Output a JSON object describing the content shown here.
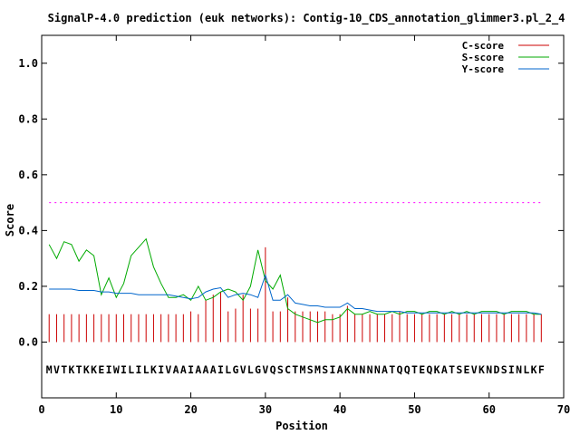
{
  "chart_data": {
    "type": "line",
    "title": "SignalP-4.0 prediction (euk networks): Contig-10_CDS_annotation_glimmer3.pl_2_4",
    "xlabel": "Position",
    "ylabel": "Score",
    "xlim": [
      0,
      70
    ],
    "ylim": [
      -0.2,
      1.1
    ],
    "x_ticks": [
      "0",
      "10",
      "20",
      "30",
      "40",
      "50",
      "60",
      "70"
    ],
    "y_ticks": [
      "0.0",
      "0.2",
      "0.4",
      "0.6",
      "0.8",
      "1.0"
    ],
    "x_tick_values": [
      0,
      10,
      20,
      30,
      40,
      50,
      60,
      70
    ],
    "y_tick_values": [
      0.0,
      0.2,
      0.4,
      0.6,
      0.8,
      1.0
    ],
    "threshold": 0.5,
    "legend_position": "top-right",
    "sequence": "MVTKTKKEIWILILKIVAAIAAAILGVLGVQSCTMSMSIAKNNNNATQQTEQKATSEVKNDSINLKF",
    "series": [
      {
        "name": "C-score",
        "style": "impulse",
        "color": "#cc0000",
        "x": [
          1,
          2,
          3,
          4,
          5,
          6,
          7,
          8,
          9,
          10,
          11,
          12,
          13,
          14,
          15,
          16,
          17,
          18,
          19,
          20,
          21,
          22,
          23,
          24,
          25,
          26,
          27,
          28,
          29,
          30,
          31,
          32,
          33,
          34,
          35,
          36,
          37,
          38,
          39,
          40,
          41,
          42,
          43,
          44,
          45,
          46,
          47,
          48,
          49,
          50,
          51,
          52,
          53,
          54,
          55,
          56,
          57,
          58,
          59,
          60,
          61,
          62,
          63,
          64,
          65,
          66,
          67
        ],
        "values": [
          0.1,
          0.1,
          0.1,
          0.1,
          0.1,
          0.1,
          0.1,
          0.1,
          0.1,
          0.1,
          0.1,
          0.1,
          0.1,
          0.1,
          0.1,
          0.1,
          0.1,
          0.1,
          0.1,
          0.11,
          0.1,
          0.15,
          0.17,
          0.18,
          0.11,
          0.12,
          0.17,
          0.12,
          0.12,
          0.34,
          0.11,
          0.11,
          0.16,
          0.11,
          0.11,
          0.11,
          0.11,
          0.11,
          0.1,
          0.1,
          0.13,
          0.1,
          0.1,
          0.1,
          0.1,
          0.1,
          0.1,
          0.11,
          0.1,
          0.1,
          0.1,
          0.1,
          0.1,
          0.1,
          0.1,
          0.1,
          0.1,
          0.1,
          0.1,
          0.1,
          0.1,
          0.1,
          0.1,
          0.1,
          0.1,
          0.1,
          0.1
        ]
      },
      {
        "name": "S-score",
        "style": "line",
        "color": "#00aa00",
        "x": [
          1,
          2,
          3,
          4,
          5,
          6,
          7,
          8,
          9,
          10,
          11,
          12,
          13,
          14,
          15,
          16,
          17,
          18,
          19,
          20,
          21,
          22,
          23,
          24,
          25,
          26,
          27,
          28,
          29,
          30,
          31,
          32,
          33,
          34,
          35,
          36,
          37,
          38,
          39,
          40,
          41,
          42,
          43,
          44,
          45,
          46,
          47,
          48,
          49,
          50,
          51,
          52,
          53,
          54,
          55,
          56,
          57,
          58,
          59,
          60,
          61,
          62,
          63,
          64,
          65,
          66,
          67
        ],
        "values": [
          0.35,
          0.3,
          0.36,
          0.35,
          0.29,
          0.33,
          0.31,
          0.17,
          0.23,
          0.16,
          0.21,
          0.31,
          0.34,
          0.37,
          0.27,
          0.21,
          0.16,
          0.16,
          0.17,
          0.15,
          0.2,
          0.15,
          0.16,
          0.18,
          0.19,
          0.18,
          0.15,
          0.2,
          0.33,
          0.22,
          0.19,
          0.24,
          0.12,
          0.1,
          0.09,
          0.08,
          0.07,
          0.08,
          0.08,
          0.09,
          0.12,
          0.1,
          0.1,
          0.11,
          0.1,
          0.1,
          0.11,
          0.1,
          0.11,
          0.11,
          0.1,
          0.11,
          0.11,
          0.1,
          0.11,
          0.1,
          0.11,
          0.1,
          0.11,
          0.11,
          0.11,
          0.1,
          0.11,
          0.11,
          0.11,
          0.1,
          0.1
        ]
      },
      {
        "name": "Y-score",
        "style": "line",
        "color": "#0066cc",
        "x": [
          1,
          2,
          3,
          4,
          5,
          6,
          7,
          8,
          9,
          10,
          11,
          12,
          13,
          14,
          15,
          16,
          17,
          18,
          19,
          20,
          21,
          22,
          23,
          24,
          25,
          26,
          27,
          28,
          29,
          30,
          31,
          32,
          33,
          34,
          35,
          36,
          37,
          38,
          39,
          40,
          41,
          42,
          43,
          44,
          45,
          46,
          47,
          48,
          49,
          50,
          51,
          52,
          53,
          54,
          55,
          56,
          57,
          58,
          59,
          60,
          61,
          62,
          63,
          64,
          65,
          66,
          67
        ],
        "values": [
          0.19,
          0.19,
          0.19,
          0.19,
          0.185,
          0.185,
          0.185,
          0.18,
          0.18,
          0.175,
          0.175,
          0.175,
          0.17,
          0.17,
          0.17,
          0.17,
          0.17,
          0.165,
          0.16,
          0.155,
          0.16,
          0.18,
          0.19,
          0.195,
          0.16,
          0.17,
          0.175,
          0.17,
          0.16,
          0.24,
          0.15,
          0.15,
          0.17,
          0.14,
          0.135,
          0.13,
          0.13,
          0.125,
          0.125,
          0.125,
          0.14,
          0.12,
          0.12,
          0.115,
          0.11,
          0.11,
          0.11,
          0.11,
          0.105,
          0.105,
          0.105,
          0.105,
          0.105,
          0.105,
          0.105,
          0.105,
          0.105,
          0.105,
          0.105,
          0.105,
          0.105,
          0.105,
          0.105,
          0.105,
          0.105,
          0.105,
          0.1
        ]
      }
    ]
  }
}
